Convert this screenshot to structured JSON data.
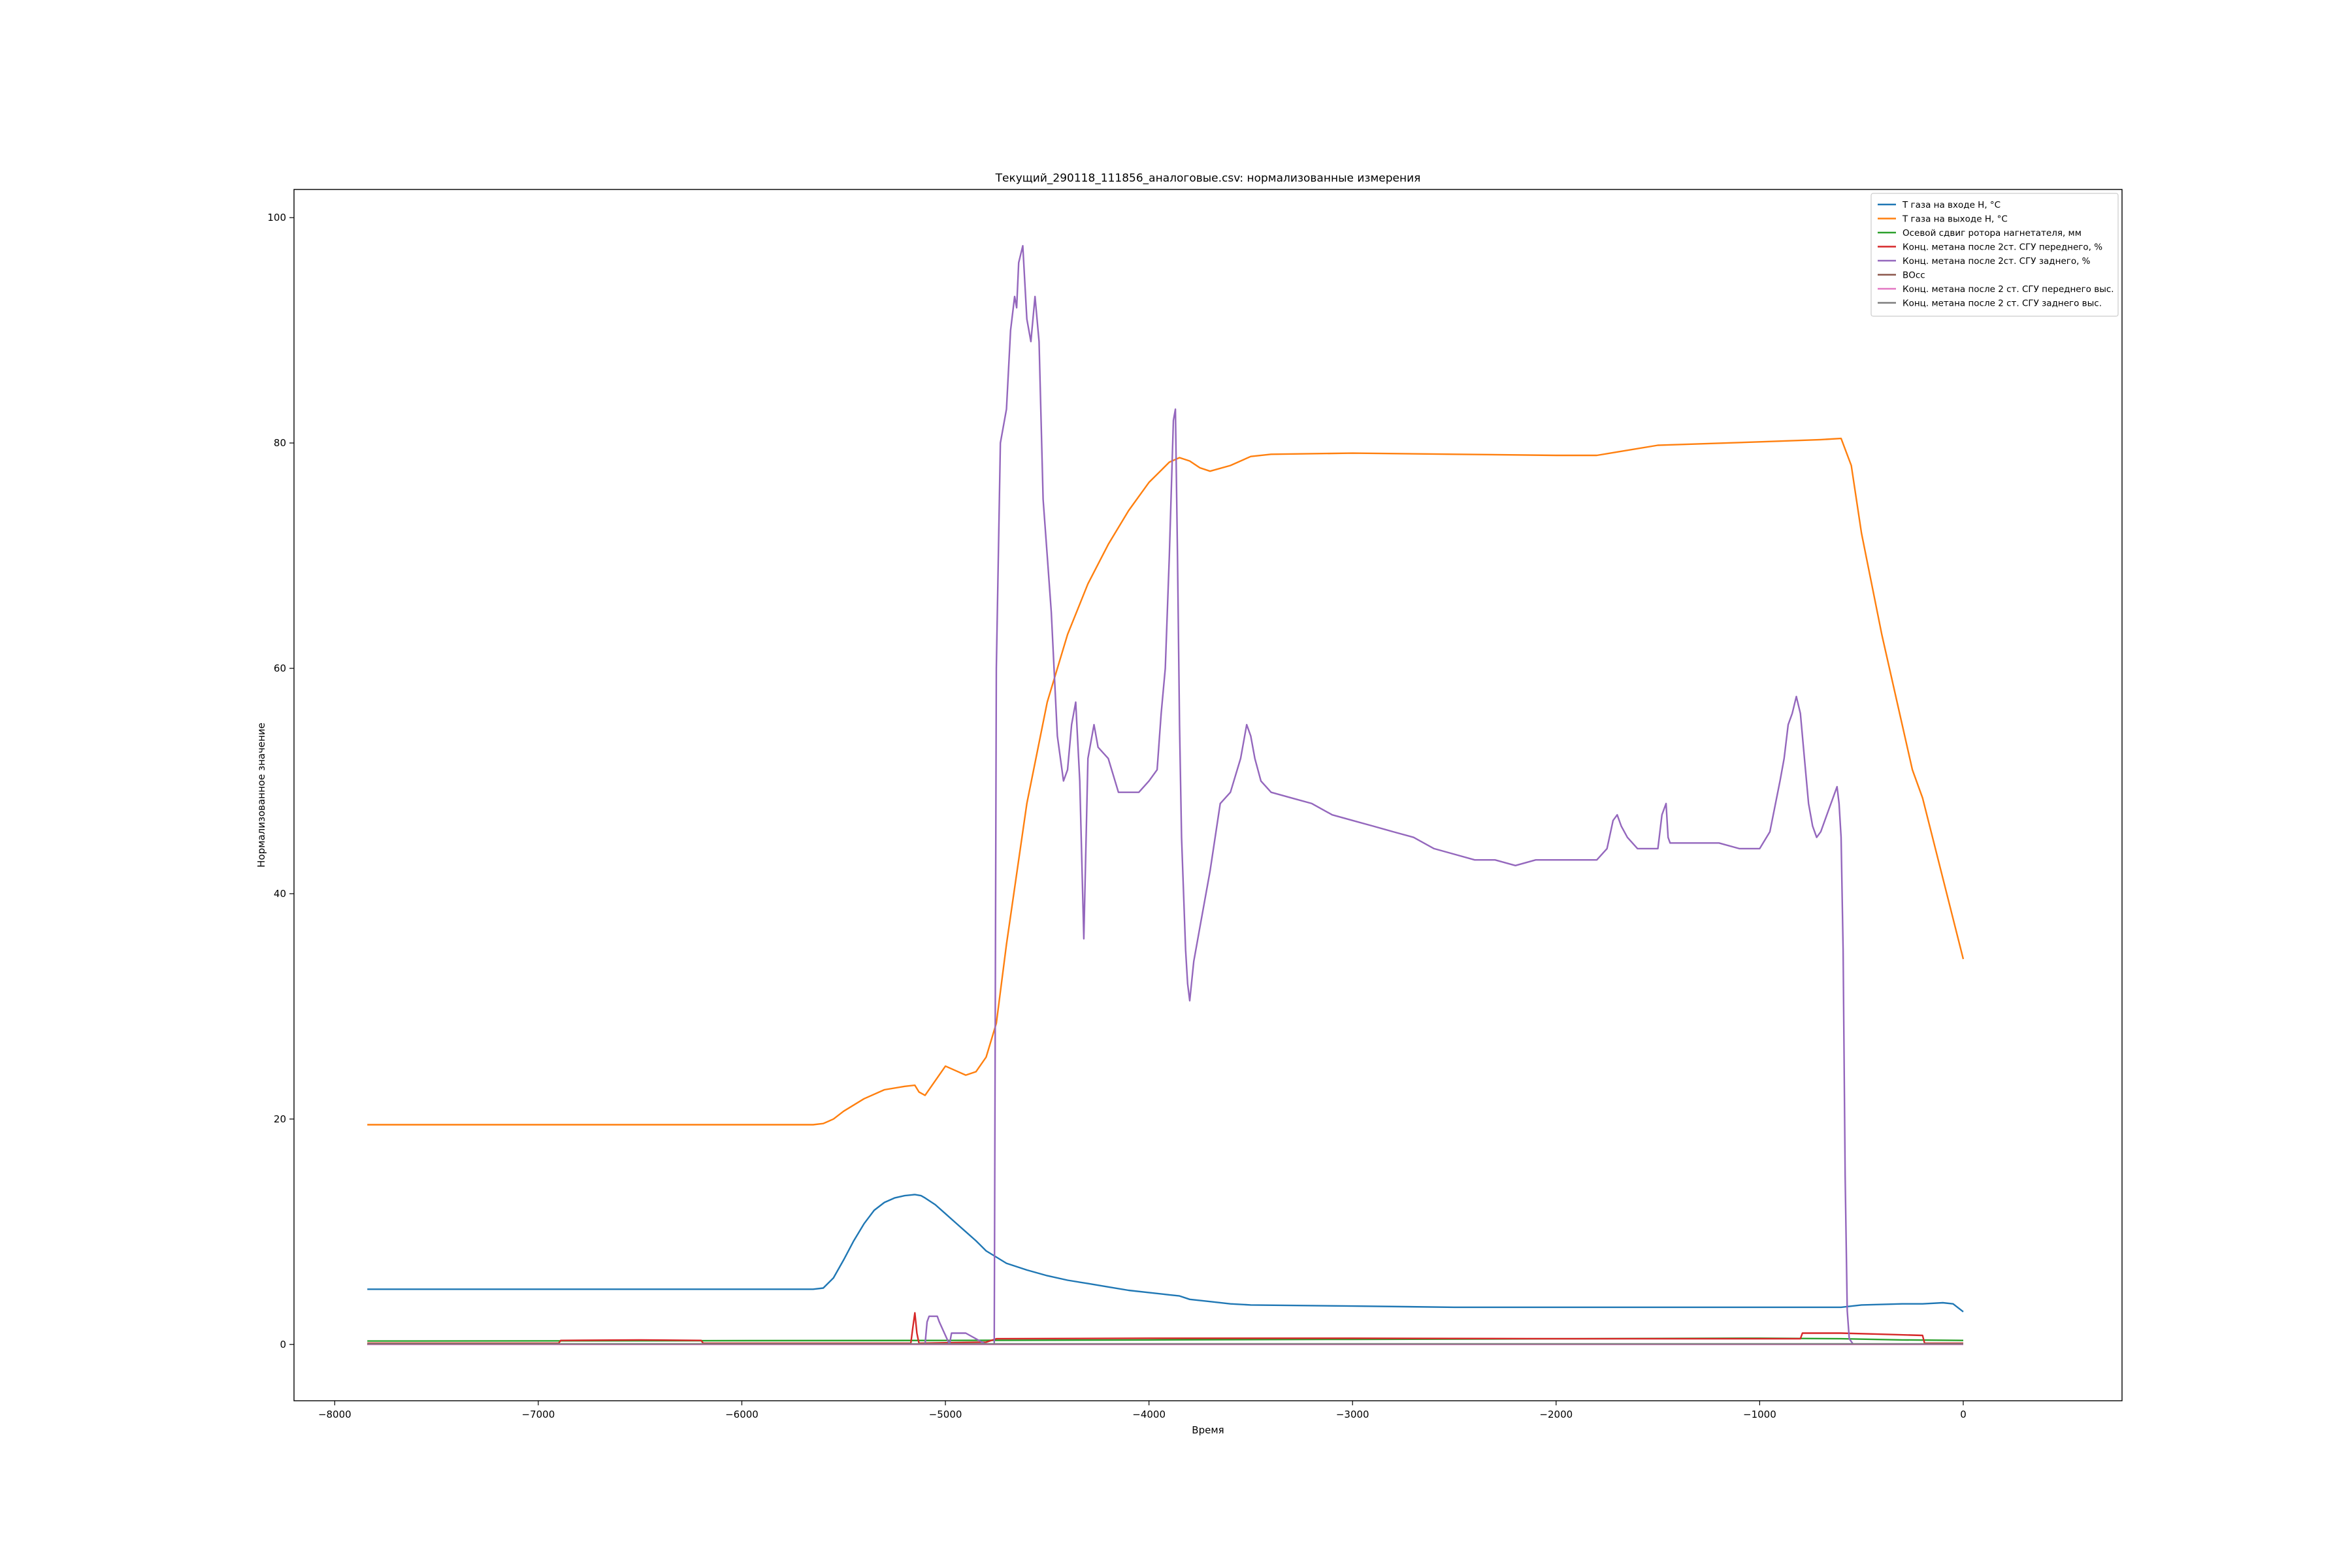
{
  "chart_data": {
    "type": "line",
    "title": "Текущий_290118_111856_аналоговые.csv: нормализованные измерения",
    "xlabel": "Время",
    "ylabel": "Нормализованное значение",
    "xlim": [
      -8200,
      780
    ],
    "ylim": [
      -5,
      102.5
    ],
    "xticks": [
      -8000,
      -7000,
      -6000,
      -5000,
      -4000,
      -3000,
      -2000,
      -1000,
      0
    ],
    "xtick_labels": [
      "−8000",
      "−7000",
      "−6000",
      "−5000",
      "−4000",
      "−3000",
      "−2000",
      "−1000",
      "0"
    ],
    "yticks": [
      0,
      20,
      40,
      60,
      80,
      100
    ],
    "ytick_labels": [
      "0",
      "20",
      "40",
      "60",
      "80",
      "100"
    ],
    "grid": false,
    "legend_position": "upper right",
    "series": [
      {
        "name": "T газа на входе Н, °C",
        "color": "#1f77b4",
        "x": [
          -7840,
          -6000,
          -5650,
          -5600,
          -5550,
          -5500,
          -5450,
          -5400,
          -5350,
          -5300,
          -5250,
          -5200,
          -5150,
          -5120,
          -5100,
          -5050,
          -5000,
          -4950,
          -4900,
          -4850,
          -4800,
          -4700,
          -4600,
          -4500,
          -4400,
          -4300,
          -4200,
          -4100,
          -4000,
          -3900,
          -3850,
          -3800,
          -3700,
          -3600,
          -3500,
          -3000,
          -2500,
          -2000,
          -1500,
          -1000,
          -700,
          -600,
          -500,
          -300,
          -200,
          -100,
          -50,
          0
        ],
        "y": [
          4.9,
          4.9,
          4.9,
          5.0,
          5.9,
          7.5,
          9.2,
          10.7,
          11.9,
          12.6,
          13.0,
          13.2,
          13.3,
          13.2,
          13.0,
          12.4,
          11.6,
          10.8,
          10.0,
          9.2,
          8.3,
          7.2,
          6.6,
          6.1,
          5.7,
          5.4,
          5.1,
          4.8,
          4.6,
          4.4,
          4.3,
          4.0,
          3.8,
          3.6,
          3.5,
          3.4,
          3.3,
          3.3,
          3.3,
          3.3,
          3.3,
          3.3,
          3.5,
          3.6,
          3.6,
          3.7,
          3.6,
          2.9
        ]
      },
      {
        "name": "T газа на выходе Н, °C",
        "color": "#ff7f0e",
        "x": [
          -7840,
          -6000,
          -5650,
          -5600,
          -5550,
          -5500,
          -5400,
          -5300,
          -5200,
          -5150,
          -5130,
          -5100,
          -5050,
          -5000,
          -4950,
          -4900,
          -4850,
          -4800,
          -4750,
          -4700,
          -4600,
          -4500,
          -4400,
          -4300,
          -4200,
          -4100,
          -4000,
          -3900,
          -3850,
          -3800,
          -3750,
          -3700,
          -3600,
          -3500,
          -3400,
          -3000,
          -2500,
          -2000,
          -1800,
          -1700,
          -1500,
          -1000,
          -700,
          -600,
          -550,
          -500,
          -400,
          -300,
          -250,
          -200,
          0
        ],
        "y": [
          19.5,
          19.5,
          19.5,
          19.6,
          20.0,
          20.7,
          21.8,
          22.6,
          22.9,
          23.0,
          22.4,
          22.1,
          23.4,
          24.7,
          24.3,
          23.9,
          24.2,
          25.5,
          28.5,
          35.5,
          48.0,
          57.0,
          63.0,
          67.5,
          71.0,
          74.0,
          76.5,
          78.3,
          78.7,
          78.4,
          77.8,
          77.5,
          78.0,
          78.8,
          79.0,
          79.1,
          79.0,
          78.9,
          78.9,
          79.2,
          79.8,
          80.1,
          80.3,
          80.4,
          78.0,
          72.0,
          63.0,
          55.0,
          51.0,
          48.5,
          34.2
        ]
      },
      {
        "name": "Осевой сдвиг ротора нагнетателя, мм",
        "color": "#2ca02c",
        "x": [
          -7840,
          -5000,
          -4000,
          -3000,
          -2000,
          -1000,
          -600,
          -300,
          0
        ],
        "y": [
          0.3,
          0.35,
          0.4,
          0.45,
          0.5,
          0.55,
          0.5,
          0.4,
          0.35
        ]
      },
      {
        "name": "Конц. метана после 2ст. СГУ переднего, %",
        "color": "#d62728",
        "x": [
          -7840,
          -6900,
          -6890,
          -6500,
          -6200,
          -6190,
          -5170,
          -5160,
          -5150,
          -5140,
          -5130,
          -5000,
          -4800,
          -4750,
          -4000,
          -3000,
          -2000,
          -1000,
          -800,
          -790,
          -600,
          -400,
          -200,
          -190,
          0
        ],
        "y": [
          0.1,
          0.1,
          0.35,
          0.4,
          0.35,
          0.1,
          0.1,
          1.5,
          2.8,
          1.0,
          0.1,
          0.15,
          0.2,
          0.5,
          0.55,
          0.55,
          0.5,
          0.5,
          0.5,
          1.0,
          1.0,
          0.9,
          0.8,
          0.1,
          0.1
        ]
      },
      {
        "name": "Конц. метана после 2ст. СГУ заднего, %",
        "color": "#9467bd",
        "x": [
          -7840,
          -5500,
          -5100,
          -5090,
          -5080,
          -5040,
          -5030,
          -4980,
          -4970,
          -4900,
          -4800,
          -4790,
          -4780,
          -4760,
          -4750,
          -4730,
          -4700,
          -4680,
          -4660,
          -4650,
          -4640,
          -4620,
          -4600,
          -4580,
          -4560,
          -4540,
          -4520,
          -4500,
          -4480,
          -4450,
          -4420,
          -4400,
          -4380,
          -4360,
          -4340,
          -4320,
          -4300,
          -4270,
          -4250,
          -4200,
          -4150,
          -4100,
          -4050,
          -4000,
          -3960,
          -3940,
          -3920,
          -3900,
          -3880,
          -3870,
          -3860,
          -3850,
          -3840,
          -3820,
          -3810,
          -3800,
          -3780,
          -3750,
          -3700,
          -3650,
          -3600,
          -3550,
          -3520,
          -3500,
          -3480,
          -3450,
          -3400,
          -3300,
          -3200,
          -3100,
          -3000,
          -2900,
          -2800,
          -2700,
          -2600,
          -2500,
          -2400,
          -2300,
          -2200,
          -2100,
          -2000,
          -1900,
          -1800,
          -1750,
          -1720,
          -1700,
          -1680,
          -1650,
          -1600,
          -1550,
          -1500,
          -1480,
          -1460,
          -1450,
          -1440,
          -1420,
          -1400,
          -1350,
          -1300,
          -1200,
          -1100,
          -1000,
          -950,
          -900,
          -880,
          -860,
          -840,
          -820,
          -800,
          -780,
          -760,
          -740,
          -720,
          -700,
          -680,
          -660,
          -640,
          -620,
          -610,
          -600,
          -590,
          -580,
          -570,
          -560,
          -540,
          -500,
          -400,
          -300,
          -200,
          0
        ],
        "y": [
          0.0,
          0.0,
          0.0,
          2.0,
          2.5,
          2.5,
          2.0,
          0.0,
          1.0,
          1.0,
          0.0,
          0.0,
          0.0,
          0.0,
          60.0,
          80.0,
          83.0,
          90.0,
          93.0,
          92.0,
          96.0,
          97.5,
          91.0,
          89.0,
          93.0,
          89.0,
          75.0,
          70.0,
          65.0,
          54.0,
          50.0,
          51.0,
          55.0,
          57.0,
          50.0,
          36.0,
          52.0,
          55.0,
          53.0,
          52.0,
          49.0,
          49.0,
          49.0,
          50.0,
          51.0,
          56.0,
          60.0,
          70.0,
          82.0,
          83.0,
          70.0,
          55.0,
          45.0,
          35.0,
          32.0,
          30.5,
          34.0,
          37.0,
          42.0,
          48.0,
          49.0,
          52.0,
          55.0,
          54.0,
          52.0,
          50.0,
          49.0,
          48.5,
          48.0,
          47.0,
          46.5,
          46.0,
          45.5,
          45.0,
          44.0,
          43.5,
          43.0,
          43.0,
          42.5,
          43.0,
          43.0,
          43.0,
          43.0,
          44.0,
          46.5,
          47.0,
          46.0,
          45.0,
          44.0,
          44.0,
          44.0,
          47.0,
          48.0,
          45.0,
          44.5,
          44.5,
          44.5,
          44.5,
          44.5,
          44.5,
          44.0,
          44.0,
          45.5,
          50.0,
          52.0,
          55.0,
          56.0,
          57.5,
          56.0,
          52.0,
          48.0,
          46.0,
          45.0,
          45.5,
          46.5,
          47.5,
          48.5,
          49.5,
          48.0,
          45.0,
          35.0,
          15.0,
          3.0,
          0.5,
          0.0,
          0.0,
          0.0,
          0.0,
          0.0,
          0.0
        ]
      },
      {
        "name": "ВОсс",
        "color": "#8c564b",
        "x": [
          -7840,
          0
        ],
        "y": [
          0.0,
          0.0
        ]
      },
      {
        "name": "Конц. метана после 2 ст. СГУ переднего выс.",
        "color": "#e377c2",
        "x": [
          -7840,
          0
        ],
        "y": [
          0.0,
          0.0
        ]
      },
      {
        "name": "Конц. метана после 2 ст. СГУ заднего  выс.",
        "color": "#7f7f7f",
        "x": [
          -7840,
          0
        ],
        "y": [
          0.05,
          0.05
        ]
      }
    ]
  }
}
